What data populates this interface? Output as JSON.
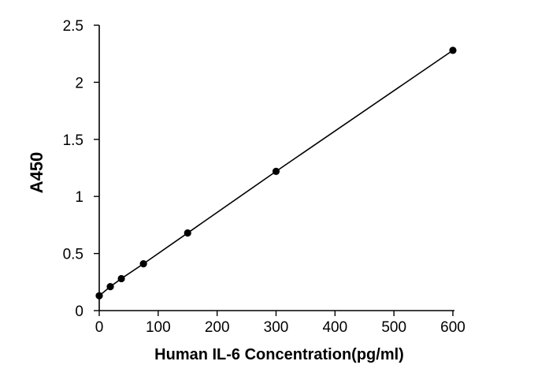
{
  "chart_data": {
    "type": "scatter",
    "title": "",
    "xlabel": "Human IL-6 Concentration(pg/ml)",
    "ylabel": "A450",
    "xlim": [
      0,
      600
    ],
    "ylim": [
      0,
      2.5
    ],
    "x_ticks": [
      "0",
      "100",
      "200",
      "300",
      "400",
      "500",
      "600"
    ],
    "y_ticks": [
      "0",
      "0.5",
      "1",
      "1.5",
      "2",
      "2.5"
    ],
    "grid": false,
    "legend": "none",
    "trendline": "linear",
    "marker_color": "#000000",
    "line_color": "#000000",
    "series": [
      {
        "x": [
          0,
          18.75,
          37.5,
          75,
          150,
          300,
          600
        ],
        "y": [
          0.13,
          0.21,
          0.28,
          0.41,
          0.68,
          1.22,
          2.28
        ]
      }
    ]
  }
}
